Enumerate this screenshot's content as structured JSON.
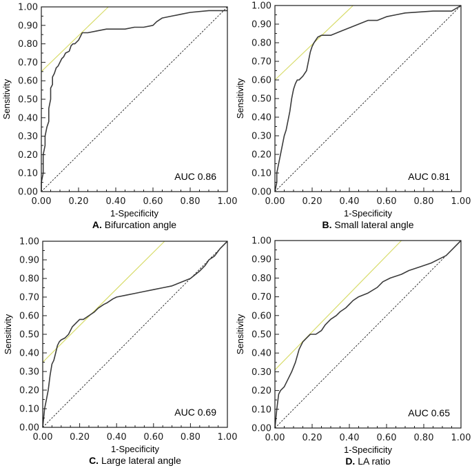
{
  "chart_data": [
    {
      "type": "line",
      "panel_letter": "A.",
      "title": "Bifurcation angle",
      "xlabel": "1-Specificity",
      "ylabel": "Sensitivity",
      "annotation": "AUC 0.86",
      "xlim": [
        0,
        1
      ],
      "ylim": [
        0,
        1
      ],
      "xticks": [
        "0.00",
        "0.20",
        "0.40",
        "0.60",
        "0.80",
        "1.00"
      ],
      "yticks": [
        "0.00",
        "0.10",
        "0.20",
        "0.30",
        "0.40",
        "0.50",
        "0.60",
        "0.70",
        "0.80",
        "0.90",
        "1.00"
      ],
      "colors": {
        "roc": "#3a3a3a",
        "reference": "#000000",
        "tangent": "#d8dc6a",
        "frame": "#1a1a1a"
      },
      "series": [
        {
          "name": "ROC",
          "x": [
            0,
            0,
            0.01,
            0.01,
            0.02,
            0.02,
            0.03,
            0.04,
            0.04,
            0.05,
            0.05,
            0.06,
            0.06,
            0.07,
            0.08,
            0.09,
            0.1,
            0.11,
            0.12,
            0.13,
            0.15,
            0.16,
            0.17,
            0.18,
            0.2,
            0.21,
            0.22,
            0.25,
            0.3,
            0.35,
            0.45,
            0.5,
            0.55,
            0.6,
            0.62,
            0.65,
            0.7,
            0.75,
            0.8,
            0.9,
            1.0
          ],
          "y": [
            0,
            0.05,
            0.1,
            0.2,
            0.25,
            0.3,
            0.35,
            0.38,
            0.45,
            0.5,
            0.56,
            0.58,
            0.62,
            0.64,
            0.67,
            0.68,
            0.7,
            0.72,
            0.73,
            0.75,
            0.76,
            0.79,
            0.8,
            0.8,
            0.82,
            0.84,
            0.86,
            0.86,
            0.87,
            0.88,
            0.88,
            0.89,
            0.89,
            0.9,
            0.92,
            0.94,
            0.95,
            0.96,
            0.97,
            0.98,
            0.98
          ]
        },
        {
          "name": "Reference",
          "x": [
            0,
            1
          ],
          "y": [
            0,
            1
          ]
        },
        {
          "name": "Tangent",
          "x": [
            0,
            0.36
          ],
          "y": [
            0.65,
            1.0
          ]
        }
      ]
    },
    {
      "type": "line",
      "panel_letter": "B.",
      "title": "Small lateral angle",
      "xlabel": "1-Specificity",
      "ylabel": "Sensitivity",
      "annotation": "AUC 0.81",
      "xlim": [
        0,
        1
      ],
      "ylim": [
        0,
        1
      ],
      "xticks": [
        "0.00",
        "0.20",
        "0.40",
        "0.60",
        "0.80",
        "1.00"
      ],
      "yticks": [
        "0.00",
        "0.10",
        "0.20",
        "0.30",
        "0.40",
        "0.50",
        "0.60",
        "0.70",
        "0.80",
        "0.90",
        "1.00"
      ],
      "colors": {
        "roc": "#3a3a3a",
        "reference": "#000000",
        "tangent": "#d8dc6a",
        "frame": "#1a1a1a"
      },
      "series": [
        {
          "name": "ROC",
          "x": [
            0,
            0.01,
            0.01,
            0.02,
            0.03,
            0.04,
            0.05,
            0.06,
            0.07,
            0.08,
            0.09,
            0.1,
            0.11,
            0.12,
            0.13,
            0.15,
            0.17,
            0.18,
            0.19,
            0.2,
            0.21,
            0.23,
            0.25,
            0.3,
            0.35,
            0.4,
            0.45,
            0.5,
            0.55,
            0.6,
            0.65,
            0.7,
            0.85,
            0.95,
            1.0
          ],
          "y": [
            0,
            0.05,
            0.1,
            0.15,
            0.2,
            0.25,
            0.3,
            0.33,
            0.38,
            0.43,
            0.5,
            0.55,
            0.58,
            0.6,
            0.6,
            0.62,
            0.65,
            0.7,
            0.75,
            0.78,
            0.8,
            0.83,
            0.84,
            0.84,
            0.86,
            0.88,
            0.9,
            0.92,
            0.92,
            0.94,
            0.95,
            0.96,
            0.97,
            0.97,
            1.0
          ]
        },
        {
          "name": "Reference",
          "x": [
            0,
            1
          ],
          "y": [
            0,
            1
          ]
        },
        {
          "name": "Tangent",
          "x": [
            0,
            0.42
          ],
          "y": [
            0.6,
            1.0
          ]
        }
      ]
    },
    {
      "type": "line",
      "panel_letter": "C.",
      "title": "Large lateral angle",
      "xlabel": "1-Specificity",
      "ylabel": "Sensitivity",
      "annotation": "AUC 0.69",
      "xlim": [
        0,
        1
      ],
      "ylim": [
        0,
        1
      ],
      "xticks": [
        "0.00",
        "0.20",
        "0.40",
        "0.60",
        "0.80",
        "1.00"
      ],
      "yticks": [
        "0.00",
        "0.10",
        "0.20",
        "0.30",
        "0.40",
        "0.50",
        "0.60",
        "0.70",
        "0.80",
        "0.90",
        "1.00"
      ],
      "colors": {
        "roc": "#3a3a3a",
        "reference": "#000000",
        "tangent": "#d8dc6a",
        "frame": "#1a1a1a"
      },
      "series": [
        {
          "name": "ROC",
          "x": [
            0,
            0.01,
            0.02,
            0.03,
            0.04,
            0.05,
            0.06,
            0.07,
            0.08,
            0.09,
            0.1,
            0.12,
            0.14,
            0.16,
            0.18,
            0.2,
            0.22,
            0.25,
            0.28,
            0.3,
            0.33,
            0.35,
            0.38,
            0.4,
            0.45,
            0.5,
            0.55,
            0.6,
            0.65,
            0.7,
            0.75,
            0.8,
            0.85,
            0.88,
            0.9,
            0.93,
            0.96,
            1.0
          ],
          "y": [
            0,
            0.1,
            0.15,
            0.2,
            0.28,
            0.34,
            0.36,
            0.4,
            0.44,
            0.46,
            0.47,
            0.48,
            0.5,
            0.54,
            0.56,
            0.58,
            0.58,
            0.6,
            0.62,
            0.64,
            0.66,
            0.67,
            0.69,
            0.7,
            0.71,
            0.72,
            0.73,
            0.74,
            0.75,
            0.76,
            0.78,
            0.8,
            0.84,
            0.87,
            0.9,
            0.92,
            0.96,
            1.0
          ]
        },
        {
          "name": "Reference",
          "x": [
            0,
            1
          ],
          "y": [
            0,
            1
          ]
        },
        {
          "name": "Tangent",
          "x": [
            0,
            0.66
          ],
          "y": [
            0.35,
            1.0
          ]
        }
      ]
    },
    {
      "type": "line",
      "panel_letter": "D.",
      "title": "LA ratio",
      "xlabel": "1-Specificity",
      "ylabel": "Sensitivity",
      "annotation": "AUC 0.65",
      "xlim": [
        0,
        1
      ],
      "ylim": [
        0,
        1
      ],
      "xticks": [
        "0.00",
        "0.20",
        "0.40",
        "0.60",
        "0.80",
        "1.00"
      ],
      "yticks": [
        "0.00",
        "0.10",
        "0.20",
        "0.30",
        "0.40",
        "0.50",
        "0.60",
        "0.70",
        "0.80",
        "0.90",
        "1.00"
      ],
      "colors": {
        "roc": "#3a3a3a",
        "reference": "#000000",
        "tangent": "#d8dc6a",
        "frame": "#1a1a1a"
      },
      "series": [
        {
          "name": "ROC",
          "x": [
            0,
            0.01,
            0.02,
            0.03,
            0.05,
            0.07,
            0.09,
            0.11,
            0.13,
            0.15,
            0.17,
            0.19,
            0.2,
            0.22,
            0.25,
            0.27,
            0.3,
            0.33,
            0.35,
            0.38,
            0.4,
            0.42,
            0.45,
            0.5,
            0.55,
            0.58,
            0.62,
            0.68,
            0.72,
            0.78,
            0.84,
            0.88,
            0.92,
            0.96,
            1.0
          ],
          "y": [
            0,
            0.1,
            0.18,
            0.2,
            0.22,
            0.26,
            0.3,
            0.35,
            0.42,
            0.46,
            0.48,
            0.5,
            0.5,
            0.5,
            0.52,
            0.55,
            0.58,
            0.6,
            0.62,
            0.64,
            0.66,
            0.68,
            0.7,
            0.72,
            0.75,
            0.78,
            0.8,
            0.82,
            0.84,
            0.86,
            0.88,
            0.9,
            0.92,
            0.96,
            1.0
          ]
        },
        {
          "name": "Reference",
          "x": [
            0,
            1
          ],
          "y": [
            0,
            1
          ]
        },
        {
          "name": "Tangent",
          "x": [
            0,
            0.68
          ],
          "y": [
            0.31,
            1.0
          ]
        }
      ]
    }
  ]
}
